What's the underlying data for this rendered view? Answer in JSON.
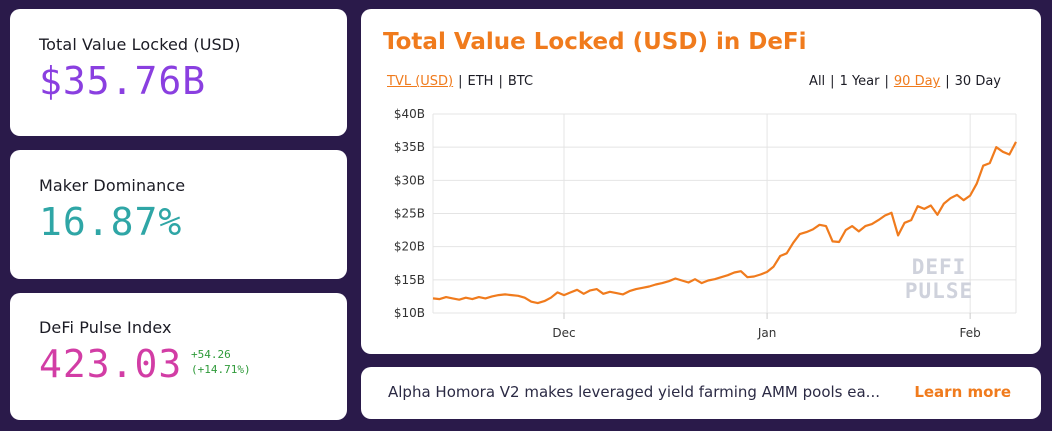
{
  "stats": {
    "tvl": {
      "label": "Total Value Locked (USD)",
      "value": "$35.76B",
      "color": "#8a3fe0"
    },
    "maker": {
      "label": "Maker Dominance",
      "value": "16.87%",
      "color": "#2fa6a6"
    },
    "index": {
      "label": "DeFi Pulse Index",
      "value": "423.03",
      "change_abs": "+54.26",
      "change_pct": "(+14.71%)",
      "color": "#d23da5"
    }
  },
  "chart": {
    "title": "Total Value Locked (USD) in DeFi",
    "currency_toggles": [
      {
        "label": "TVL (USD)",
        "active": true
      },
      {
        "label": "ETH",
        "active": false
      },
      {
        "label": "BTC",
        "active": false
      }
    ],
    "range_toggles": [
      {
        "label": "All",
        "active": false
      },
      {
        "label": "1 Year",
        "active": false
      },
      {
        "label": "90 Day",
        "active": true
      },
      {
        "label": "30 Day",
        "active": false
      }
    ],
    "watermark": [
      "DEFI",
      "PULSE"
    ]
  },
  "chart_data": {
    "type": "line",
    "title": "Total Value Locked (USD) in DeFi",
    "xlabel": "",
    "ylabel": "",
    "ylim": [
      10,
      40
    ],
    "yticks": [
      "$10B",
      "$15B",
      "$20B",
      "$25B",
      "$30B",
      "$35B",
      "$40B"
    ],
    "xticks": [
      {
        "label": "Dec",
        "x": 20
      },
      {
        "label": "Jan",
        "x": 51
      },
      {
        "label": "Feb",
        "x": 82
      }
    ],
    "grid": true,
    "line_color": "#f07b1d",
    "series": [
      {
        "values": [
          12.2,
          12.1,
          12.4,
          12.2,
          12.0,
          12.3,
          12.1,
          12.4,
          12.2,
          12.5,
          12.7,
          12.8,
          12.7,
          12.6,
          12.3,
          11.7,
          11.5,
          11.8,
          12.3,
          13.1,
          12.7,
          13.1,
          13.5,
          12.9,
          13.4,
          13.6,
          12.9,
          13.2,
          13.0,
          12.8,
          13.3,
          13.6,
          13.8,
          14.0,
          14.3,
          14.5,
          14.8,
          15.2,
          14.9,
          14.6,
          15.1,
          14.5,
          14.9,
          15.1,
          15.4,
          15.7,
          16.1,
          16.3,
          15.4,
          15.5,
          15.8,
          16.2,
          17.0,
          18.6,
          19.0,
          20.6,
          21.9,
          22.2,
          22.6,
          23.3,
          23.1,
          20.8,
          20.7,
          22.5,
          23.1,
          22.3,
          23.1,
          23.4,
          24.0,
          24.7,
          25.1,
          21.7,
          23.6,
          24.0,
          26.1,
          25.7,
          26.2,
          24.8,
          26.5,
          27.3,
          27.8,
          27.0,
          27.7,
          29.5,
          32.2,
          32.6,
          35.0,
          34.3,
          33.9,
          35.8
        ]
      }
    ]
  },
  "news": {
    "text": "Alpha Homora V2 makes leveraged yield farming AMM pools ea...",
    "link_label": "Learn more"
  },
  "colors": {
    "background": "#2a1a4a",
    "accent": "#f07b1d"
  }
}
